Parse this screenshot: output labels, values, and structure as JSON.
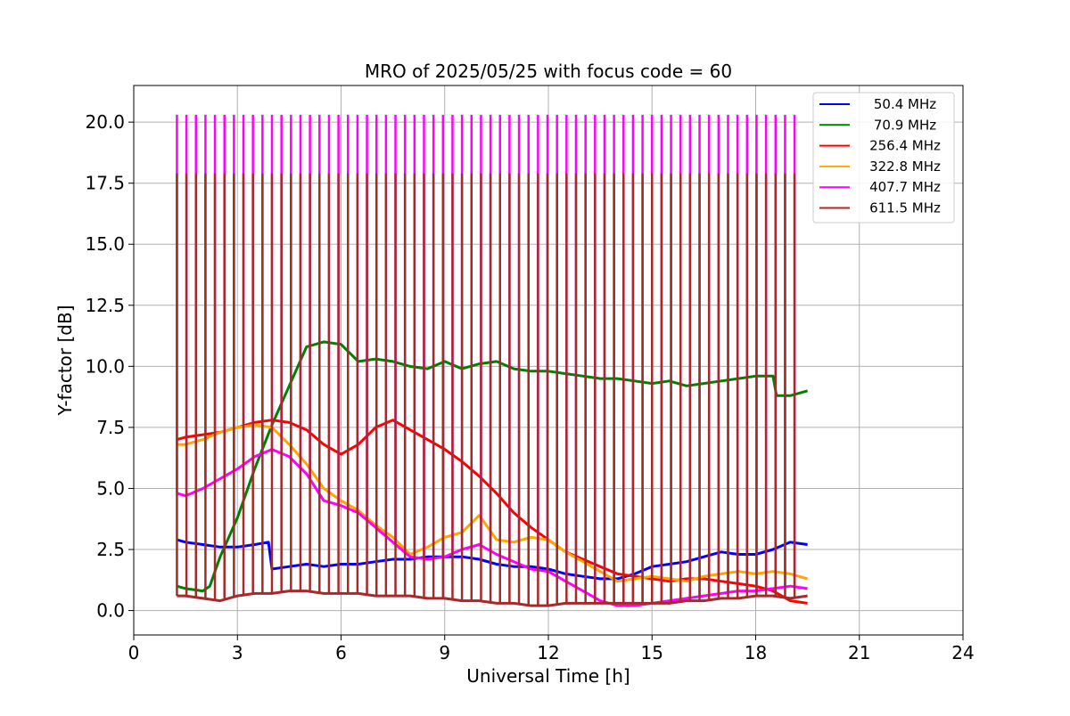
{
  "chart_data": {
    "type": "line",
    "title": "MRO of 2025/05/25 with focus code = 60",
    "xlabel": "Universal Time [h]",
    "ylabel": "Y-factor [dB]",
    "xlim": [
      0,
      24
    ],
    "ylim": [
      -1.0,
      21.5
    ],
    "xticks": [
      0,
      3,
      6,
      9,
      12,
      15,
      18,
      21,
      24
    ],
    "xtick_labels": [
      "0",
      "3",
      "6",
      "9",
      "12",
      "15",
      "18",
      "21",
      "24"
    ],
    "yticks": [
      0.0,
      2.5,
      5.0,
      7.5,
      10.0,
      12.5,
      15.0,
      17.5,
      20.0
    ],
    "ytick_labels": [
      "0.0",
      "2.5",
      "5.0",
      "7.5",
      "10.0",
      "12.5",
      "15.0",
      "17.5",
      "20.0"
    ],
    "grid": true,
    "legend_position": "top-right",
    "calibration_spikes": {
      "start_h": 1.25,
      "end_h": 19.3,
      "interval_h": 0.275,
      "peaks": {
        "407.7 MHz": 20.3,
        "611.5 MHz": 17.9
      }
    },
    "series": [
      {
        "name": "50.4 MHz",
        "color": "#0000ff",
        "x": [
          1.25,
          1.5,
          2.0,
          2.5,
          3.0,
          3.5,
          3.9,
          4.0,
          4.5,
          5.0,
          5.5,
          6.0,
          6.5,
          7.0,
          7.5,
          8.0,
          8.5,
          9.0,
          9.5,
          10.0,
          10.5,
          11.0,
          11.5,
          12.0,
          12.5,
          13.0,
          13.5,
          14.0,
          14.5,
          15.0,
          15.5,
          16.0,
          16.5,
          17.0,
          17.5,
          18.0,
          18.5,
          19.0,
          19.5
        ],
        "y": [
          2.9,
          2.8,
          2.7,
          2.6,
          2.6,
          2.7,
          2.8,
          1.7,
          1.8,
          1.9,
          1.8,
          1.9,
          1.9,
          2.0,
          2.1,
          2.1,
          2.2,
          2.2,
          2.2,
          2.1,
          1.9,
          1.8,
          1.8,
          1.7,
          1.5,
          1.4,
          1.3,
          1.3,
          1.5,
          1.8,
          1.9,
          2.0,
          2.2,
          2.4,
          2.3,
          2.3,
          2.5,
          2.8,
          2.7
        ]
      },
      {
        "name": "70.9 MHz",
        "color": "#008000",
        "x": [
          1.25,
          1.5,
          2.0,
          2.2,
          2.5,
          3.0,
          3.5,
          4.0,
          4.5,
          5.0,
          5.5,
          6.0,
          6.5,
          7.0,
          7.5,
          8.0,
          8.5,
          9.0,
          9.5,
          10.0,
          10.5,
          11.0,
          11.5,
          12.0,
          12.5,
          13.0,
          13.5,
          14.0,
          14.5,
          15.0,
          15.5,
          16.0,
          16.5,
          17.0,
          17.5,
          18.0,
          18.5,
          18.6,
          19.0,
          19.5
        ],
        "y": [
          1.0,
          0.9,
          0.8,
          1.0,
          2.2,
          3.8,
          5.8,
          7.6,
          9.2,
          10.8,
          11.0,
          10.9,
          10.2,
          10.3,
          10.2,
          10.0,
          9.9,
          10.2,
          9.9,
          10.1,
          10.2,
          9.9,
          9.8,
          9.8,
          9.7,
          9.6,
          9.5,
          9.5,
          9.4,
          9.3,
          9.4,
          9.2,
          9.3,
          9.4,
          9.5,
          9.6,
          9.6,
          8.8,
          8.8,
          9.0
        ]
      },
      {
        "name": "256.4 MHz",
        "color": "#ff0000",
        "x": [
          1.25,
          1.5,
          2.0,
          2.5,
          3.0,
          3.5,
          4.0,
          4.5,
          5.0,
          5.5,
          6.0,
          6.5,
          7.0,
          7.5,
          8.0,
          8.5,
          9.0,
          9.5,
          10.0,
          10.5,
          11.0,
          11.5,
          12.0,
          12.5,
          13.0,
          13.5,
          14.0,
          14.5,
          15.0,
          15.5,
          16.0,
          16.5,
          17.0,
          17.5,
          18.0,
          18.5,
          19.0,
          19.5
        ],
        "y": [
          7.0,
          7.1,
          7.2,
          7.3,
          7.5,
          7.7,
          7.8,
          7.7,
          7.4,
          6.8,
          6.4,
          6.8,
          7.5,
          7.8,
          7.4,
          7.0,
          6.6,
          6.1,
          5.5,
          4.8,
          4.0,
          3.4,
          2.9,
          2.4,
          2.1,
          1.8,
          1.5,
          1.4,
          1.3,
          1.2,
          1.3,
          1.3,
          1.2,
          1.1,
          1.0,
          0.8,
          0.4,
          0.3
        ]
      },
      {
        "name": "322.8 MHz",
        "color": "#ffa500",
        "x": [
          1.25,
          1.5,
          2.0,
          2.5,
          3.0,
          3.5,
          4.0,
          4.5,
          5.0,
          5.5,
          6.0,
          6.5,
          7.0,
          7.5,
          8.0,
          8.5,
          9.0,
          9.5,
          10.0,
          10.5,
          11.0,
          11.5,
          12.0,
          12.5,
          13.0,
          13.5,
          14.0,
          14.5,
          15.0,
          15.5,
          16.0,
          16.5,
          17.0,
          17.5,
          18.0,
          18.5,
          19.0,
          19.5
        ],
        "y": [
          6.8,
          6.8,
          7.0,
          7.3,
          7.5,
          7.6,
          7.5,
          6.8,
          6.0,
          5.0,
          4.5,
          4.1,
          3.5,
          3.0,
          2.3,
          2.6,
          3.0,
          3.2,
          3.9,
          2.9,
          2.8,
          3.0,
          2.9,
          2.4,
          2.0,
          1.6,
          1.2,
          1.3,
          1.4,
          1.3,
          1.2,
          1.4,
          1.5,
          1.6,
          1.5,
          1.6,
          1.5,
          1.3
        ]
      },
      {
        "name": "407.7 MHz",
        "color": "#ff00ff",
        "x": [
          1.25,
          1.5,
          2.0,
          2.5,
          3.0,
          3.5,
          4.0,
          4.5,
          5.0,
          5.5,
          6.0,
          6.5,
          7.0,
          7.5,
          8.0,
          8.5,
          9.0,
          9.5,
          10.0,
          10.5,
          11.0,
          11.5,
          12.0,
          12.5,
          13.0,
          13.5,
          14.0,
          14.5,
          15.0,
          15.5,
          16.0,
          16.5,
          17.0,
          17.5,
          18.0,
          18.5,
          19.0,
          19.5
        ],
        "y": [
          4.8,
          4.7,
          5.0,
          5.4,
          5.8,
          6.3,
          6.6,
          6.3,
          5.6,
          4.5,
          4.3,
          4.0,
          3.4,
          2.8,
          2.2,
          2.1,
          2.2,
          2.5,
          2.7,
          2.3,
          2.0,
          1.7,
          1.6,
          1.2,
          0.8,
          0.4,
          0.2,
          0.2,
          0.3,
          0.4,
          0.5,
          0.6,
          0.7,
          0.8,
          0.8,
          0.9,
          1.0,
          0.9
        ]
      },
      {
        "name": "611.5 MHz",
        "color": "#a52a2a",
        "x": [
          1.25,
          1.5,
          2.0,
          2.5,
          3.0,
          3.5,
          4.0,
          4.5,
          5.0,
          5.5,
          6.0,
          6.5,
          7.0,
          7.5,
          8.0,
          8.5,
          9.0,
          9.5,
          10.0,
          10.5,
          11.0,
          11.5,
          12.0,
          12.5,
          13.0,
          13.5,
          14.0,
          14.5,
          15.0,
          15.5,
          16.0,
          16.5,
          17.0,
          17.5,
          18.0,
          18.5,
          19.0,
          19.5
        ],
        "y": [
          0.6,
          0.6,
          0.5,
          0.4,
          0.6,
          0.7,
          0.7,
          0.8,
          0.8,
          0.7,
          0.7,
          0.7,
          0.6,
          0.6,
          0.6,
          0.5,
          0.5,
          0.4,
          0.4,
          0.3,
          0.3,
          0.2,
          0.2,
          0.3,
          0.3,
          0.3,
          0.3,
          0.3,
          0.3,
          0.3,
          0.4,
          0.4,
          0.5,
          0.5,
          0.6,
          0.6,
          0.5,
          0.6
        ]
      }
    ]
  }
}
